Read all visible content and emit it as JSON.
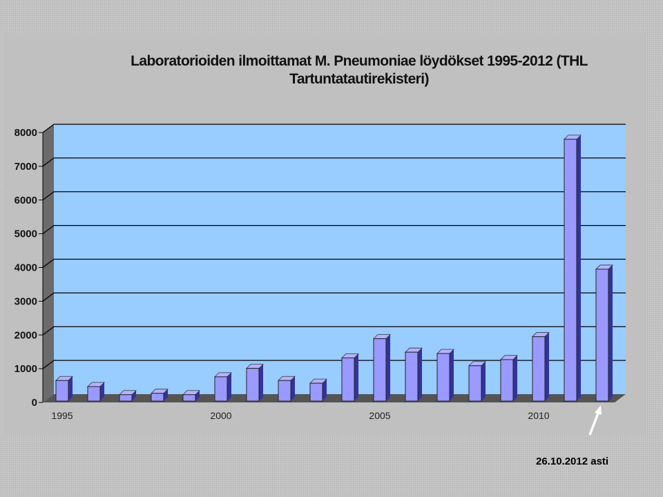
{
  "chart_data": {
    "type": "bar",
    "title": "Laboratorioiden ilmoittamat  M. Pneumoniae löydökset 1995-2012 (THL Tartuntatautirekisteri)",
    "title_lines": [
      "Laboratorioiden ilmoittamat  M. Pneumoniae löydökset 1995-2012 (THL",
      "Tartuntatautirekisteri)"
    ],
    "categories": [
      "1995",
      "1996",
      "1997",
      "1998",
      "1999",
      "2000",
      "2001",
      "2002",
      "2003",
      "2004",
      "2005",
      "2006",
      "2007",
      "2008",
      "2009",
      "2010",
      "2011",
      "2012"
    ],
    "x_tick_labels": [
      "1995",
      "2000",
      "2005",
      "2010"
    ],
    "values": [
      650,
      470,
      230,
      270,
      230,
      760,
      1010,
      650,
      570,
      1320,
      1890,
      1490,
      1450,
      1090,
      1270,
      1950,
      7800,
      3950
    ],
    "ylim": [
      0,
      8000
    ],
    "yticks": [
      "0",
      "1000",
      "2000",
      "3000",
      "4000",
      "5000",
      "6000",
      "7000",
      "8000"
    ],
    "grid": true,
    "legend": "none",
    "colors": {
      "plot_background": "#99ccff",
      "bar_front": "#9999ff",
      "bar_top": "#b3b3ff",
      "bar_side": "#333399",
      "wall_side": "#6b6b6b",
      "floor": "#555555",
      "gridline": "#000000"
    }
  },
  "annotation": {
    "text": "26.10.2012 asti",
    "arrow_target_category": "2012"
  }
}
